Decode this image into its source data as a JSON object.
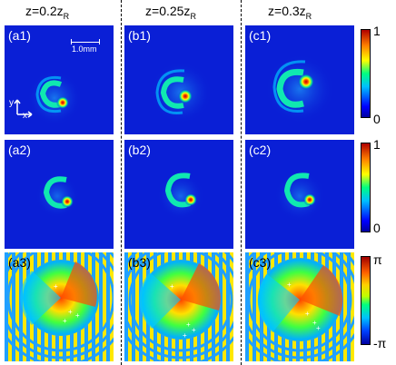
{
  "columns": [
    {
      "prefix": "z=",
      "value": "0.2z",
      "sub": "R"
    },
    {
      "prefix": "z=",
      "value": "0.25z",
      "sub": "R"
    },
    {
      "prefix": "z=",
      "value": "0.3z",
      "sub": "R"
    }
  ],
  "panels": [
    [
      "(a1)",
      "(b1)",
      "(c1)"
    ],
    [
      "(a2)",
      "(b2)",
      "(c2)"
    ],
    [
      "(a3)",
      "(b3)",
      "(c3)"
    ]
  ],
  "scalebar_label": "1.0mm",
  "axis_y": "y",
  "axis_x": "x",
  "colorbar_amp": {
    "top": "1",
    "bottom": "0"
  },
  "colorbar_phase": {
    "top": "π",
    "bottom": "-π"
  },
  "colors": {
    "background_blue": "#0a1fd6",
    "hot": "#d40000",
    "ring": "#00e070"
  }
}
